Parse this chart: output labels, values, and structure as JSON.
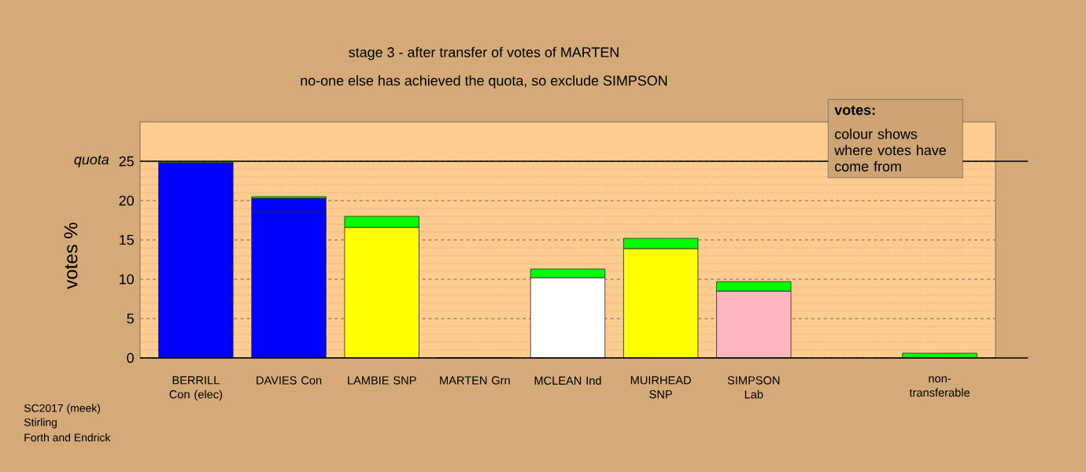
{
  "chart_data": {
    "type": "bar",
    "stacked": true,
    "title": "stage 3 - after transfer of votes of MARTEN",
    "subtitle": "no-one else has achieved the quota, so exclude SIMPSON",
    "ylabel": "votes %",
    "categories": [
      "BERRILL Con (elec)",
      "DAVIES Con",
      "LAMBIE SNP",
      "MARTEN Grn",
      "MCLEAN Ind",
      "MUIRHEAD SNP",
      "SIMPSON Lab",
      null,
      "non-transferable"
    ],
    "series": [
      {
        "values": [
          24.8,
          18.6,
          16.6,
          0,
          10.2,
          13.9,
          8.5,
          null,
          null
        ],
        "colors": [
          "#0000ff",
          "#0000ff",
          "#ffff00",
          "#1a1a1a",
          "#ffffff",
          "#ffff00",
          "#ffb6c1",
          "#ffffff",
          "#ffffff"
        ]
      },
      {
        "values": [
          null,
          1.7,
          null,
          null,
          null,
          null,
          null,
          null,
          null
        ],
        "color": "#0000ff"
      },
      {
        "values": [
          0.1,
          0.2,
          1.4,
          null,
          1.1,
          1.3,
          1.2,
          null,
          0.6
        ],
        "color": "#00ff00"
      }
    ],
    "ylim": [
      0,
      30
    ],
    "yticks": [
      0,
      5,
      10,
      15,
      20,
      25
    ],
    "grid": "y",
    "ref_lines": [
      {
        "axis": "y",
        "value": 25,
        "label": "quota"
      }
    ],
    "annotations": [
      "votes:",
      "colour shows where votes have come from",
      "SC2017 (meek)",
      "Stirling",
      "Forth and Endrick"
    ]
  }
}
